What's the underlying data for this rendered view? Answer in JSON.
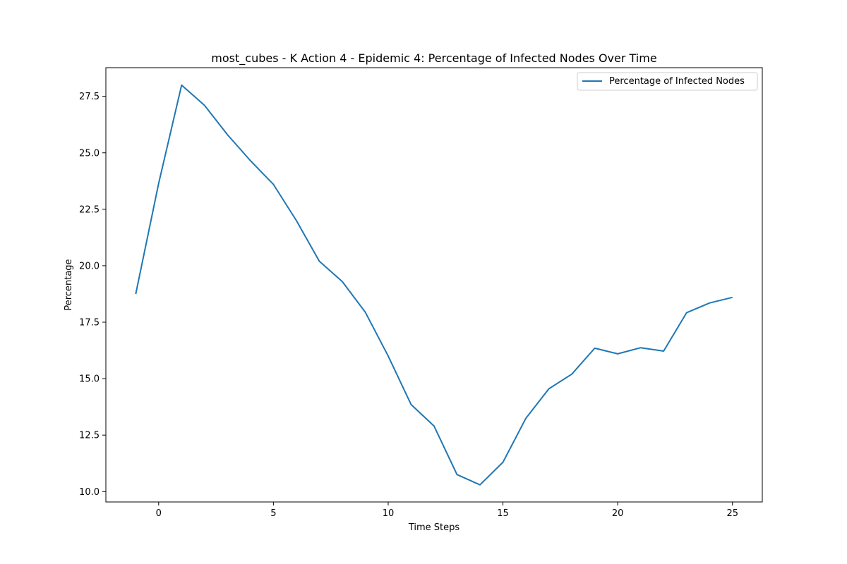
{
  "chart_data": {
    "type": "line",
    "title": "most_cubes - K Action 4 - Epidemic 4: Percentage of Infected Nodes Over Time",
    "xlabel": "Time Steps",
    "ylabel": "Percentage",
    "xlim": [
      -2.3,
      26.3
    ],
    "ylim": [
      9.54,
      28.77
    ],
    "xticks": [
      0,
      5,
      10,
      15,
      20,
      25
    ],
    "yticks": [
      10.0,
      12.5,
      15.0,
      17.5,
      20.0,
      22.5,
      25.0,
      27.5
    ],
    "grid": false,
    "legend_position": "top-right",
    "series": [
      {
        "name": "Percentage of Infected Nodes",
        "color": "#1f77b4",
        "x": [
          -1,
          0,
          1,
          2,
          3,
          4,
          5,
          6,
          7,
          8,
          9,
          10,
          11,
          12,
          13,
          14,
          15,
          16,
          17,
          18,
          19,
          20,
          21,
          22,
          23,
          24,
          25
        ],
        "y": [
          18.75,
          23.65,
          28.0,
          27.1,
          25.8,
          24.65,
          23.6,
          22.0,
          20.2,
          19.3,
          17.95,
          16.0,
          13.85,
          12.9,
          10.75,
          10.3,
          11.3,
          13.25,
          14.55,
          15.2,
          16.35,
          16.1,
          16.37,
          16.22,
          17.92,
          18.35,
          18.6
        ]
      }
    ]
  }
}
